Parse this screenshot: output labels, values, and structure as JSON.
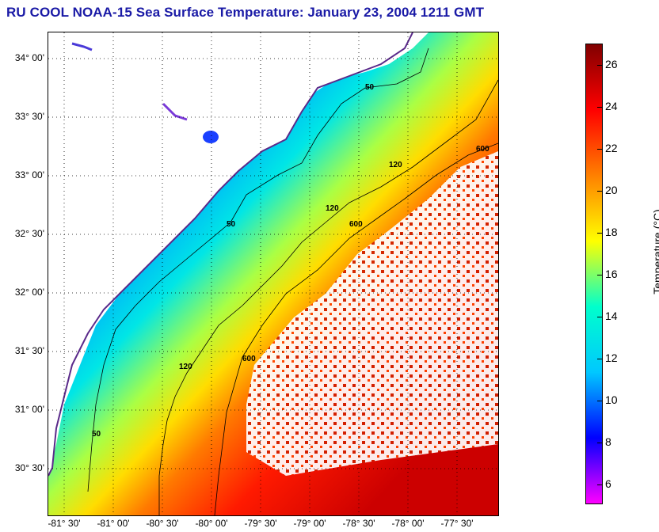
{
  "title": "RU COOL  NOAA-15  Sea Surface Temperature:  January 23, 2004 1211 GMT",
  "colorbar": {
    "label": "Temperature (°C)",
    "ticks": [
      "26",
      "24",
      "22",
      "20",
      "18",
      "16",
      "14",
      "12",
      "10",
      "8",
      "6"
    ],
    "range": [
      5,
      27
    ],
    "colors": [
      "#ff00ff",
      "#0000ff",
      "#00c8ff",
      "#00ffcc",
      "#ffff00",
      "#ff8000",
      "#ff0000",
      "#800000"
    ]
  },
  "lat_labels": [
    "34° 00'",
    "33° 30'",
    "33° 00'",
    "32° 30'",
    "32° 00'",
    "31° 30'",
    "31° 00'",
    "30° 30'"
  ],
  "lon_labels": [
    "-81° 30'",
    "-81° 00'",
    "-80° 30'",
    "-80° 00'",
    "-79° 30'",
    "-79° 00'",
    "-78° 30'",
    "-78° 00'",
    "-77° 30'"
  ],
  "contours": {
    "c50": "50",
    "c120": "120",
    "c600": "600"
  }
}
